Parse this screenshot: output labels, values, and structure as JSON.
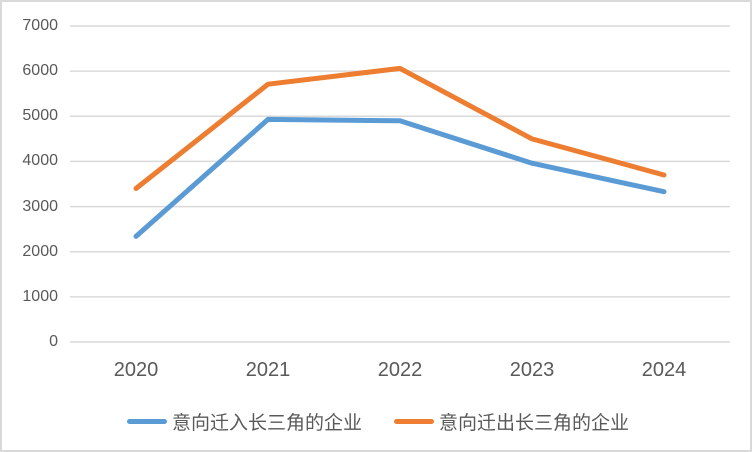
{
  "page": {
    "background": "#ffffff",
    "frame_border_color": "#d9d9d9"
  },
  "chart_data": {
    "type": "line",
    "title": "",
    "xlabel": "",
    "ylabel": "",
    "categories": [
      "2020",
      "2021",
      "2022",
      "2023",
      "2024"
    ],
    "series": [
      {
        "name": "意向迁入长三角的企业",
        "color": "#5B9BD5",
        "values": [
          2340,
          4930,
          4900,
          3960,
          3330
        ]
      },
      {
        "name": "意向迁出长三角的企业",
        "color": "#ED7D31",
        "values": [
          3400,
          5710,
          6060,
          4500,
          3700
        ]
      }
    ],
    "ylim": [
      0,
      7000
    ],
    "y_tick_interval": 1000,
    "y_ticks_top_to_bottom": [
      "7000",
      "6000",
      "5000",
      "4000",
      "3000",
      "2000",
      "1000",
      "0"
    ],
    "grid": "horizontal",
    "gridline_color": "#d9d9d9",
    "axis_text_color": "#595959",
    "legend_position": "bottom",
    "line_width": 5
  }
}
